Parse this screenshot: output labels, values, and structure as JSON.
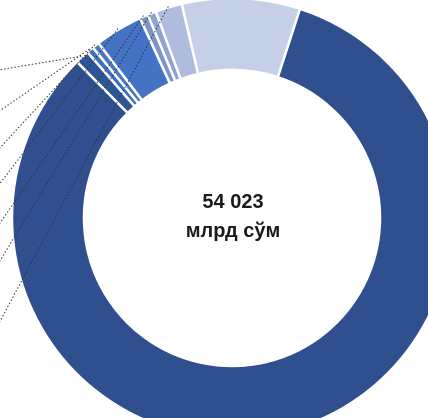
{
  "chart_data": {
    "type": "pie",
    "center_label": {
      "line1": "54 023",
      "line2": "млрд сўм"
    },
    "slices": [
      {
        "value": 80.0,
        "color": "#2f4f8f"
      },
      {
        "value": 1.0,
        "color": "#2f5597"
      },
      {
        "value": 0.5,
        "color": "#3b6fc2"
      },
      {
        "value": 0.5,
        "color": "#4a76c4"
      },
      {
        "value": 3.4,
        "color": "#4472c4"
      },
      {
        "value": 0.6,
        "color": "#7c94c8"
      },
      {
        "value": 0.6,
        "color": "#8fa3d3"
      },
      {
        "value": 1.9,
        "color": "#aebcde"
      },
      {
        "value": 8.4,
        "color": "#c5d0e8"
      }
    ]
  }
}
